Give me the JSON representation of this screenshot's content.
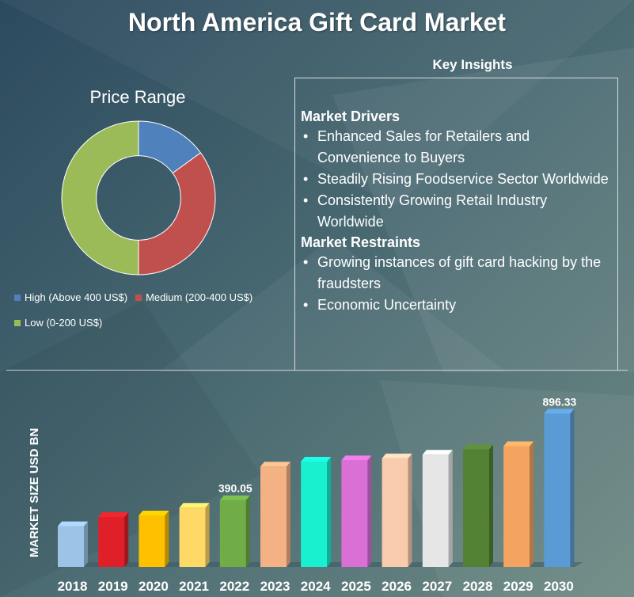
{
  "title": "North America Gift Card Market",
  "colors": {
    "background": "#2f4f63",
    "text": "#ffffff"
  },
  "price_range": {
    "title": "Price Range",
    "legend": [
      {
        "label": "High (Above 400 US$)",
        "color": "#4f81bd"
      },
      {
        "label": "Medium (200-400 US$)",
        "color": "#c0504d"
      },
      {
        "label": "Low (0-200 US$)",
        "color": "#9bbb59"
      }
    ]
  },
  "key_insights": {
    "heading": "Key Insights",
    "drivers_heading": "Market Drivers",
    "drivers": [
      "Enhanced Sales for Retailers and Convenience to Buyers",
      "Steadily Rising Foodservice Sector Worldwide",
      "Consistently Growing Retail Industry Worldwide"
    ],
    "restraints_heading": "Market Restraints",
    "restraints": [
      "Growing instances of gift card hacking by the fraudsters",
      "Economic Uncertainty"
    ]
  },
  "chart_data": [
    {
      "type": "pie",
      "title": "Price Range",
      "labels": [
        "High (Above 400 US$)",
        "Medium (200-400 US$)",
        "Low (0-200 US$)"
      ],
      "values": [
        15,
        35,
        50
      ],
      "colors": [
        "#4f81bd",
        "#c0504d",
        "#9bbb59"
      ],
      "hole": 0.55,
      "legend": "bottom"
    },
    {
      "type": "bar",
      "categories": [
        "2018",
        "2019",
        "2020",
        "2021",
        "2022",
        "2023",
        "2024",
        "2025",
        "2026",
        "2027",
        "2028",
        "2029",
        "2030"
      ],
      "values": [
        238,
        291,
        301,
        346,
        390.05,
        587,
        616,
        623,
        635,
        656,
        688,
        706,
        896.33
      ],
      "data_labels": [
        {
          "index": 4,
          "text": "390.05"
        },
        {
          "index": 12,
          "text": "896.33"
        }
      ],
      "ylabel": "MARKET SIZE USD BN",
      "ylim": [
        0,
        1000
      ],
      "colors": [
        "#9dc3e6",
        "#e02028",
        "#ffc000",
        "#ffd966",
        "#70ad47",
        "#f4b183",
        "#19f0d0",
        "#da70d6",
        "#f8cbad",
        "#e7e6e6",
        "#548235",
        "#f4a460",
        "#5b9bd5"
      ]
    }
  ]
}
